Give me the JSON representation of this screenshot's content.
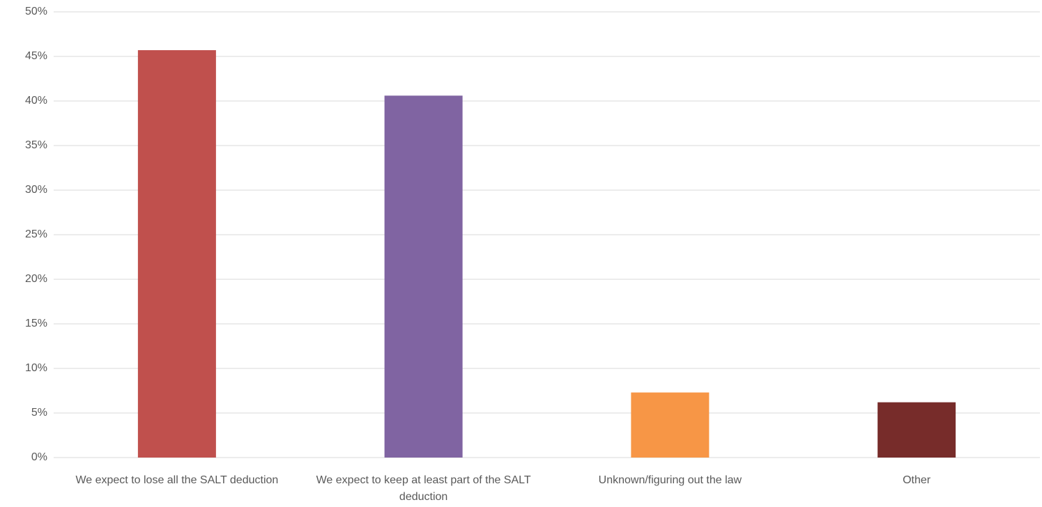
{
  "chart_data": {
    "type": "bar",
    "categories": [
      "We expect to lose all the SALT deduction",
      "We expect to keep at least part of the SALT deduction",
      "Unknown/figuring out the law",
      "Other"
    ],
    "values": [
      45.7,
      40.6,
      7.3,
      6.2
    ],
    "colors": [
      "#c0504d",
      "#8064a2",
      "#f79646",
      "#772c2a"
    ],
    "ylim": [
      0,
      50
    ],
    "yticks": [
      {
        "value": 0,
        "label": "0%"
      },
      {
        "value": 5,
        "label": "5%"
      },
      {
        "value": 10,
        "label": "10%"
      },
      {
        "value": 15,
        "label": "15%"
      },
      {
        "value": 20,
        "label": "20%"
      },
      {
        "value": 25,
        "label": "25%"
      },
      {
        "value": 30,
        "label": "30%"
      },
      {
        "value": 35,
        "label": "35%"
      },
      {
        "value": 40,
        "label": "40%"
      },
      {
        "value": 45,
        "label": "45%"
      },
      {
        "value": 50,
        "label": "50%"
      }
    ],
    "grid": true
  }
}
